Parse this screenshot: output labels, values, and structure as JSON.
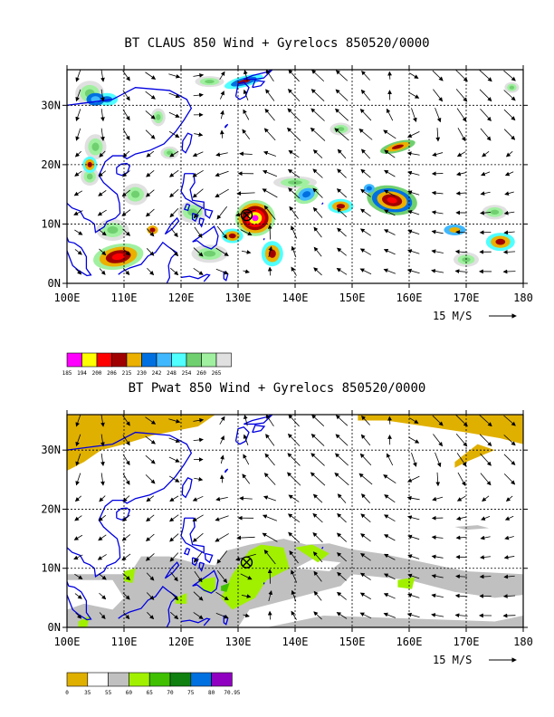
{
  "panel1": {
    "title": "BT CLAUS 850 Wind + Gyrelocs 850520/0000",
    "lon_ticks": [
      "100E",
      "110E",
      "120E",
      "130E",
      "140E",
      "150E",
      "160E",
      "170E",
      "180"
    ],
    "lat_ticks": [
      "0N",
      "10N",
      "20N",
      "30N"
    ],
    "ref_vector": "15 M/S",
    "legend": {
      "colors": [
        "#ff00ff",
        "#ffff00",
        "#ff0000",
        "#a00000",
        "#ebb000",
        "#0070e0",
        "#40b8ff",
        "#50ffff",
        "#70d070",
        "#a0f0a0",
        "#e0e0e0"
      ],
      "labels": [
        "185",
        "194",
        "200",
        "206",
        "215",
        "230",
        "242",
        "248",
        "254",
        "260",
        "265"
      ]
    },
    "marker_lonlat": [
      131.5,
      11.5
    ]
  },
  "panel2": {
    "title": "BT Pwat 850 Wind + Gyrelocs 850520/0000",
    "lon_ticks": [
      "100E",
      "110E",
      "120E",
      "130E",
      "140E",
      "150E",
      "160E",
      "170E",
      "180"
    ],
    "lat_ticks": [
      "0N",
      "10N",
      "20N",
      "30N"
    ],
    "ref_vector": "15 M/S",
    "legend": {
      "colors": [
        "#e0b000",
        "#ffffff",
        "#c0c0c0",
        "#a0f000",
        "#40c000",
        "#108010",
        "#0070e0",
        "#9000c0"
      ],
      "labels": [
        "0",
        "35",
        "55",
        "60",
        "65",
        "70",
        "75",
        "80",
        "70.95"
      ]
    },
    "marker_lonlat": [
      131.5,
      11.0
    ]
  }
}
